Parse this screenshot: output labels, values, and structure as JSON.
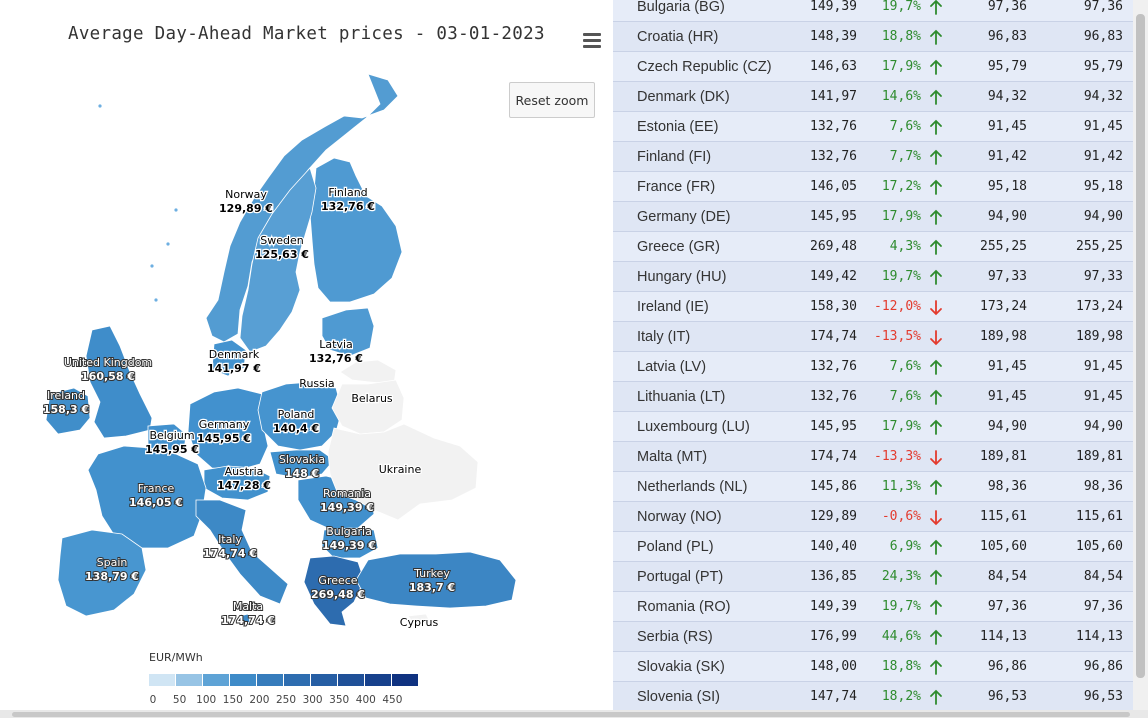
{
  "chart_data": {
    "type": "choropleth-map",
    "title": "Average Day-Ahead Market prices - 03-01-2023",
    "unit": "EUR/MWh",
    "scale_ticks": [
      "0",
      "50",
      "100",
      "150",
      "200",
      "250",
      "300",
      "350",
      "400",
      "450"
    ],
    "colors": {
      "low": "#ecf5fb",
      "high": "#0b2b7a",
      "no_data": "#f2f2f2"
    },
    "regions": [
      {
        "name": "Norway",
        "value": 129.89,
        "label": "129,89 €"
      },
      {
        "name": "Finland",
        "value": 132.76,
        "label": "132,76 €"
      },
      {
        "name": "Sweden",
        "value": 125.63,
        "label": "125,63 €"
      },
      {
        "name": "Denmark",
        "value": 141.97,
        "label": "141,97 €"
      },
      {
        "name": "Latvia",
        "value": 132.76,
        "label": "132,76 €"
      },
      {
        "name": "United Kingdom",
        "value": 160.58,
        "label": "160,58 €"
      },
      {
        "name": "Ireland",
        "value": 158.3,
        "label": "158,3 €"
      },
      {
        "name": "Germany",
        "value": 145.95,
        "label": "145,95 €"
      },
      {
        "name": "Poland",
        "value": 140.4,
        "label": "140,4 €"
      },
      {
        "name": "Belgium",
        "value": 145.95,
        "label": "145,95 €"
      },
      {
        "name": "Slovakia",
        "value": 148,
        "label": "148 €"
      },
      {
        "name": "Austria",
        "value": 147.28,
        "label": "147,28 €"
      },
      {
        "name": "France",
        "value": 146.05,
        "label": "146,05 €"
      },
      {
        "name": "Romania",
        "value": 149.39,
        "label": "149,39 €"
      },
      {
        "name": "Bulgaria",
        "value": 149.39,
        "label": "149,39 €"
      },
      {
        "name": "Italy",
        "value": 174.74,
        "label": "174,74 €"
      },
      {
        "name": "Spain",
        "value": 138.79,
        "label": "138,79 €"
      },
      {
        "name": "Greece",
        "value": 269.48,
        "label": "269,48 €"
      },
      {
        "name": "Turkey",
        "value": 183.7,
        "label": "183,7 €"
      },
      {
        "name": "Malta",
        "value": 174.74,
        "label": "174,74 €"
      },
      {
        "name": "Russia",
        "value": null,
        "label": ""
      },
      {
        "name": "Belarus",
        "value": null,
        "label": ""
      },
      {
        "name": "Ukraine",
        "value": null,
        "label": ""
      },
      {
        "name": "Cyprus",
        "value": null,
        "label": ""
      }
    ]
  },
  "map": {
    "reset_zoom_label": "Reset zoom",
    "menu_icon": "hamburger-menu-icon"
  },
  "table": {
    "rows": [
      {
        "country": "Bulgaria (BG)",
        "price": "149,39",
        "change": "19,7%",
        "dir": "up",
        "v3": "97,36",
        "v4": "97,36"
      },
      {
        "country": "Croatia (HR)",
        "price": "148,39",
        "change": "18,8%",
        "dir": "up",
        "v3": "96,83",
        "v4": "96,83"
      },
      {
        "country": "Czech Republic (CZ)",
        "price": "146,63",
        "change": "17,9%",
        "dir": "up",
        "v3": "95,79",
        "v4": "95,79"
      },
      {
        "country": "Denmark (DK)",
        "price": "141,97",
        "change": "14,6%",
        "dir": "up",
        "v3": "94,32",
        "v4": "94,32"
      },
      {
        "country": "Estonia (EE)",
        "price": "132,76",
        "change": "7,6%",
        "dir": "up",
        "v3": "91,45",
        "v4": "91,45"
      },
      {
        "country": "Finland (FI)",
        "price": "132,76",
        "change": "7,7%",
        "dir": "up",
        "v3": "91,42",
        "v4": "91,42"
      },
      {
        "country": "France (FR)",
        "price": "146,05",
        "change": "17,2%",
        "dir": "up",
        "v3": "95,18",
        "v4": "95,18"
      },
      {
        "country": "Germany (DE)",
        "price": "145,95",
        "change": "17,9%",
        "dir": "up",
        "v3": "94,90",
        "v4": "94,90"
      },
      {
        "country": "Greece (GR)",
        "price": "269,48",
        "change": "4,3%",
        "dir": "up",
        "v3": "255,25",
        "v4": "255,25"
      },
      {
        "country": "Hungary (HU)",
        "price": "149,42",
        "change": "19,7%",
        "dir": "up",
        "v3": "97,33",
        "v4": "97,33"
      },
      {
        "country": "Ireland (IE)",
        "price": "158,30",
        "change": "-12,0%",
        "dir": "down",
        "v3": "173,24",
        "v4": "173,24"
      },
      {
        "country": "Italy (IT)",
        "price": "174,74",
        "change": "-13,5%",
        "dir": "down",
        "v3": "189,98",
        "v4": "189,98"
      },
      {
        "country": "Latvia (LV)",
        "price": "132,76",
        "change": "7,6%",
        "dir": "up",
        "v3": "91,45",
        "v4": "91,45"
      },
      {
        "country": "Lithuania (LT)",
        "price": "132,76",
        "change": "7,6%",
        "dir": "up",
        "v3": "91,45",
        "v4": "91,45"
      },
      {
        "country": "Luxembourg (LU)",
        "price": "145,95",
        "change": "17,9%",
        "dir": "up",
        "v3": "94,90",
        "v4": "94,90"
      },
      {
        "country": "Malta (MT)",
        "price": "174,74",
        "change": "-13,3%",
        "dir": "down",
        "v3": "189,81",
        "v4": "189,81"
      },
      {
        "country": "Netherlands (NL)",
        "price": "145,86",
        "change": "11,3%",
        "dir": "up",
        "v3": "98,36",
        "v4": "98,36"
      },
      {
        "country": "Norway (NO)",
        "price": "129,89",
        "change": "-0,6%",
        "dir": "down",
        "v3": "115,61",
        "v4": "115,61"
      },
      {
        "country": "Poland (PL)",
        "price": "140,40",
        "change": "6,9%",
        "dir": "up",
        "v3": "105,60",
        "v4": "105,60"
      },
      {
        "country": "Portugal (PT)",
        "price": "136,85",
        "change": "24,3%",
        "dir": "up",
        "v3": "84,54",
        "v4": "84,54"
      },
      {
        "country": "Romania (RO)",
        "price": "149,39",
        "change": "19,7%",
        "dir": "up",
        "v3": "97,36",
        "v4": "97,36"
      },
      {
        "country": "Serbia (RS)",
        "price": "176,99",
        "change": "44,6%",
        "dir": "up",
        "v3": "114,13",
        "v4": "114,13"
      },
      {
        "country": "Slovakia (SK)",
        "price": "148,00",
        "change": "18,8%",
        "dir": "up",
        "v3": "96,86",
        "v4": "96,86"
      },
      {
        "country": "Slovenia (SI)",
        "price": "147,74",
        "change": "18,2%",
        "dir": "up",
        "v3": "96,53",
        "v4": "96,53"
      }
    ]
  }
}
